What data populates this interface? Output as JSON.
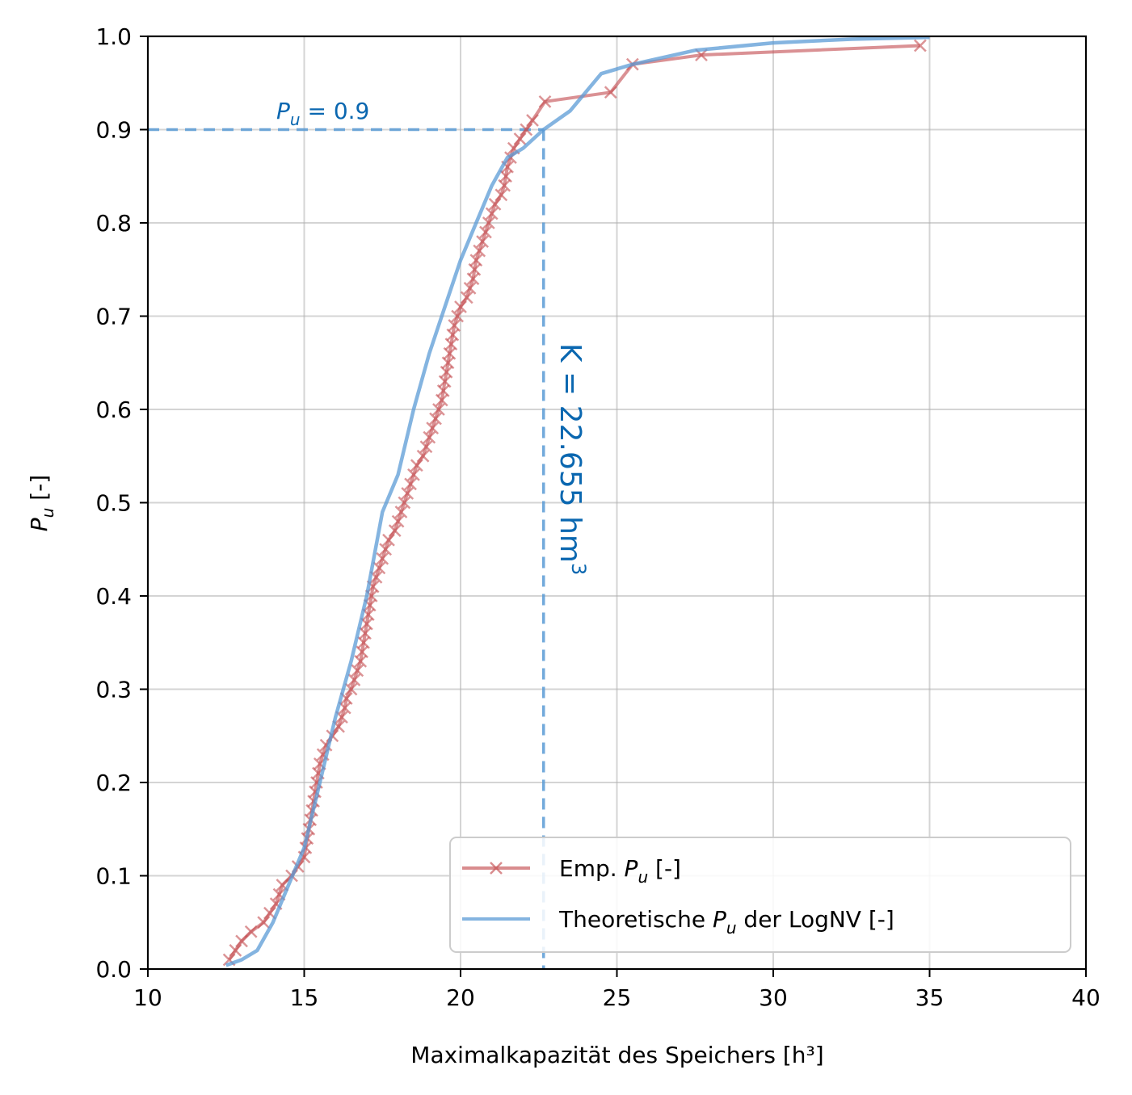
{
  "chart_data": {
    "type": "line",
    "xlabel": "Maximalkapazität des Speichers [h³]",
    "ylabel": "P_u [-]",
    "ylabel_parts": {
      "symbol": "P",
      "sub": "u",
      "rest": " [-]"
    },
    "xlim": [
      10,
      40
    ],
    "ylim": [
      0.0,
      1.0
    ],
    "x_ticks": [
      "10",
      "15",
      "20",
      "25",
      "30",
      "35",
      "40"
    ],
    "y_ticks": [
      "0.0",
      "0.1",
      "0.2",
      "0.3",
      "0.4",
      "0.5",
      "0.6",
      "0.7",
      "0.8",
      "0.9",
      "1.0"
    ],
    "grid": true,
    "legend_position": "lower-right",
    "colors": {
      "empirical": "#c44e52",
      "theoretical": "#5b9bd5",
      "annotation": "#0a67b0"
    },
    "series": [
      {
        "name": "Emp. P_u [-]",
        "legend_parts": {
          "pre": "Emp. ",
          "symbol": "P",
          "sub": "u",
          "post": " [-]"
        },
        "marker": "x",
        "x": [
          12.6,
          12.8,
          13.0,
          13.3,
          13.7,
          13.9,
          14.1,
          14.2,
          14.3,
          14.6,
          14.8,
          15.0,
          15.05,
          15.1,
          15.15,
          15.2,
          15.25,
          15.3,
          15.35,
          15.4,
          15.45,
          15.5,
          15.6,
          15.7,
          15.9,
          16.1,
          16.2,
          16.3,
          16.35,
          16.5,
          16.6,
          16.7,
          16.8,
          16.85,
          16.9,
          16.95,
          17.0,
          17.05,
          17.1,
          17.15,
          17.2,
          17.3,
          17.4,
          17.5,
          17.6,
          17.7,
          17.9,
          18.0,
          18.1,
          18.2,
          18.3,
          18.4,
          18.5,
          18.6,
          18.8,
          18.9,
          19.0,
          19.1,
          19.2,
          19.3,
          19.4,
          19.45,
          19.5,
          19.55,
          19.6,
          19.65,
          19.7,
          19.75,
          19.8,
          19.9,
          20.0,
          20.2,
          20.3,
          20.4,
          20.45,
          20.5,
          20.6,
          20.7,
          20.8,
          20.9,
          21.0,
          21.1,
          21.3,
          21.4,
          21.45,
          21.5,
          21.6,
          21.7,
          21.9,
          22.1,
          22.3,
          22.7,
          24.8,
          25.5,
          27.7,
          34.7
        ],
        "y": [
          0.01,
          0.02,
          0.03,
          0.04,
          0.05,
          0.06,
          0.07,
          0.08,
          0.09,
          0.1,
          0.11,
          0.12,
          0.13,
          0.14,
          0.15,
          0.16,
          0.17,
          0.18,
          0.19,
          0.2,
          0.21,
          0.22,
          0.23,
          0.24,
          0.25,
          0.26,
          0.27,
          0.28,
          0.29,
          0.3,
          0.31,
          0.32,
          0.33,
          0.34,
          0.35,
          0.36,
          0.37,
          0.38,
          0.39,
          0.4,
          0.41,
          0.42,
          0.43,
          0.44,
          0.45,
          0.46,
          0.47,
          0.48,
          0.49,
          0.5,
          0.51,
          0.52,
          0.53,
          0.54,
          0.55,
          0.56,
          0.57,
          0.58,
          0.59,
          0.6,
          0.61,
          0.62,
          0.63,
          0.64,
          0.65,
          0.66,
          0.67,
          0.68,
          0.69,
          0.7,
          0.71,
          0.72,
          0.73,
          0.74,
          0.75,
          0.76,
          0.77,
          0.78,
          0.79,
          0.8,
          0.81,
          0.82,
          0.83,
          0.84,
          0.85,
          0.86,
          0.87,
          0.88,
          0.89,
          0.9,
          0.91,
          0.93,
          0.94,
          0.97,
          0.98,
          0.99
        ]
      },
      {
        "name": "Theoretische P_u der LogNV [-]",
        "legend_parts": {
          "pre": "Theoretische ",
          "symbol": "P",
          "sub": "u",
          "post": " der LogNV [-]"
        },
        "marker": "none",
        "x": [
          12.5,
          13.0,
          13.5,
          14.0,
          14.5,
          15.0,
          15.5,
          16.0,
          16.5,
          17.0,
          17.5,
          18.0,
          18.5,
          19.0,
          19.5,
          20.0,
          20.5,
          21.0,
          21.5,
          22.0,
          22.655,
          23.5,
          24.5,
          25.5,
          27.5,
          30.0,
          32.5,
          35.0
        ],
        "y": [
          0.004,
          0.01,
          0.02,
          0.05,
          0.09,
          0.13,
          0.2,
          0.27,
          0.33,
          0.4,
          0.49,
          0.53,
          0.6,
          0.66,
          0.71,
          0.76,
          0.8,
          0.84,
          0.87,
          0.88,
          0.9,
          0.92,
          0.96,
          0.97,
          0.985,
          0.993,
          0.997,
          0.999
        ]
      }
    ],
    "annotations": {
      "threshold_p": 0.9,
      "threshold_k": 22.655,
      "p_label": {
        "symbol": "P",
        "sub": "u",
        "text": " = 0.9"
      },
      "k_label": {
        "text": "K = 22.655 hm",
        "sup": "3"
      }
    }
  }
}
